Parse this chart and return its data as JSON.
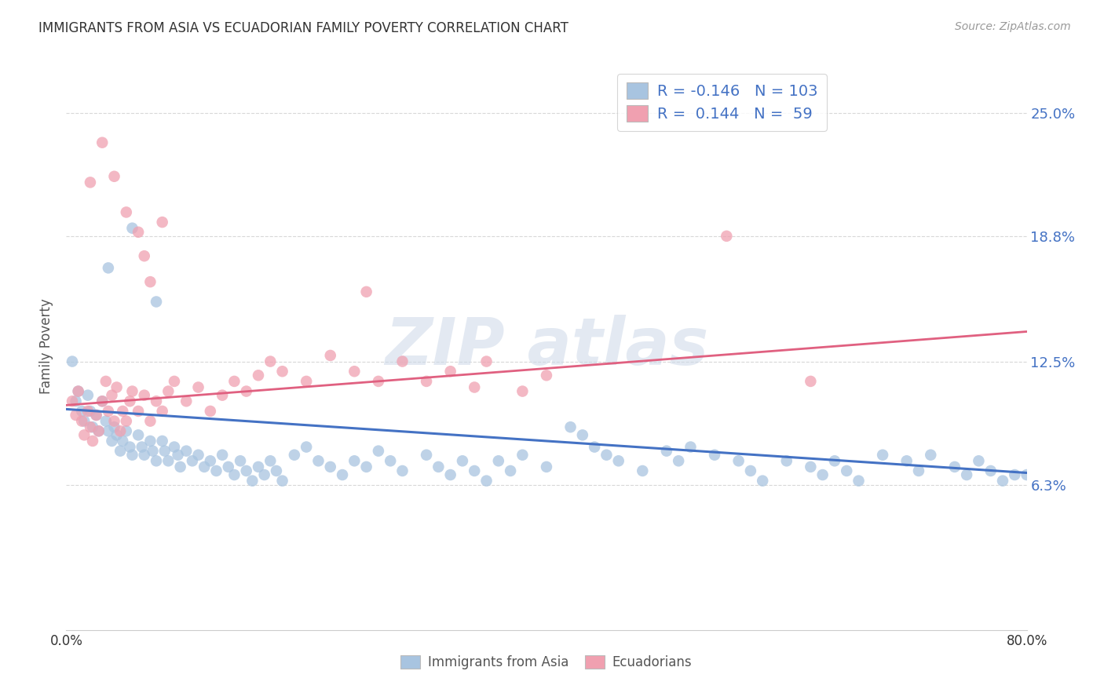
{
  "title": "IMMIGRANTS FROM ASIA VS ECUADORIAN FAMILY POVERTY CORRELATION CHART",
  "source": "Source: ZipAtlas.com",
  "ylabel": "Family Poverty",
  "ytick_labels": [
    "6.3%",
    "12.5%",
    "18.8%",
    "25.0%"
  ],
  "ytick_values": [
    0.063,
    0.125,
    0.188,
    0.25
  ],
  "xlim": [
    0.0,
    0.8
  ],
  "ylim": [
    -0.01,
    0.275
  ],
  "legend_blue_label": "Immigrants from Asia",
  "legend_pink_label": "Ecuadorians",
  "blue_R": -0.146,
  "blue_N": 103,
  "pink_R": 0.144,
  "pink_N": 59,
  "blue_color": "#a8c4e0",
  "pink_color": "#f0a0b0",
  "blue_line_color": "#4472C4",
  "pink_line_color": "#e06080",
  "background_color": "#ffffff",
  "grid_color": "#d8d8d8",
  "blue_line_start_y": 0.101,
  "blue_line_end_y": 0.069,
  "pink_line_start_y": 0.103,
  "pink_line_end_y": 0.14,
  "pink_line_end_x": 0.8,
  "blue_scatter_x": [
    0.005,
    0.008,
    0.01,
    0.013,
    0.015,
    0.018,
    0.02,
    0.022,
    0.025,
    0.027,
    0.03,
    0.033,
    0.035,
    0.038,
    0.04,
    0.042,
    0.045,
    0.047,
    0.05,
    0.053,
    0.055,
    0.06,
    0.063,
    0.065,
    0.07,
    0.072,
    0.075,
    0.08,
    0.082,
    0.085,
    0.09,
    0.093,
    0.095,
    0.1,
    0.105,
    0.11,
    0.115,
    0.12,
    0.125,
    0.13,
    0.135,
    0.14,
    0.145,
    0.15,
    0.155,
    0.16,
    0.165,
    0.17,
    0.175,
    0.18,
    0.19,
    0.2,
    0.21,
    0.22,
    0.23,
    0.24,
    0.25,
    0.26,
    0.27,
    0.28,
    0.3,
    0.31,
    0.32,
    0.33,
    0.34,
    0.35,
    0.36,
    0.37,
    0.38,
    0.4,
    0.42,
    0.43,
    0.44,
    0.45,
    0.46,
    0.48,
    0.5,
    0.51,
    0.52,
    0.54,
    0.56,
    0.57,
    0.58,
    0.6,
    0.62,
    0.63,
    0.64,
    0.65,
    0.66,
    0.68,
    0.7,
    0.71,
    0.72,
    0.74,
    0.75,
    0.76,
    0.77,
    0.78,
    0.79,
    0.8,
    0.035,
    0.055,
    0.075
  ],
  "blue_scatter_y": [
    0.125,
    0.105,
    0.11,
    0.1,
    0.095,
    0.108,
    0.1,
    0.092,
    0.098,
    0.09,
    0.105,
    0.095,
    0.09,
    0.085,
    0.092,
    0.088,
    0.08,
    0.085,
    0.09,
    0.082,
    0.078,
    0.088,
    0.082,
    0.078,
    0.085,
    0.08,
    0.075,
    0.085,
    0.08,
    0.075,
    0.082,
    0.078,
    0.072,
    0.08,
    0.075,
    0.078,
    0.072,
    0.075,
    0.07,
    0.078,
    0.072,
    0.068,
    0.075,
    0.07,
    0.065,
    0.072,
    0.068,
    0.075,
    0.07,
    0.065,
    0.078,
    0.082,
    0.075,
    0.072,
    0.068,
    0.075,
    0.072,
    0.08,
    0.075,
    0.07,
    0.078,
    0.072,
    0.068,
    0.075,
    0.07,
    0.065,
    0.075,
    0.07,
    0.078,
    0.072,
    0.092,
    0.088,
    0.082,
    0.078,
    0.075,
    0.07,
    0.08,
    0.075,
    0.082,
    0.078,
    0.075,
    0.07,
    0.065,
    0.075,
    0.072,
    0.068,
    0.075,
    0.07,
    0.065,
    0.078,
    0.075,
    0.07,
    0.078,
    0.072,
    0.068,
    0.075,
    0.07,
    0.065,
    0.068,
    0.068,
    0.172,
    0.192,
    0.155
  ],
  "pink_scatter_x": [
    0.005,
    0.008,
    0.01,
    0.013,
    0.015,
    0.018,
    0.02,
    0.022,
    0.025,
    0.027,
    0.03,
    0.033,
    0.035,
    0.038,
    0.04,
    0.042,
    0.045,
    0.047,
    0.05,
    0.053,
    0.055,
    0.06,
    0.065,
    0.07,
    0.075,
    0.08,
    0.085,
    0.09,
    0.1,
    0.11,
    0.12,
    0.13,
    0.14,
    0.15,
    0.16,
    0.17,
    0.18,
    0.2,
    0.22,
    0.24,
    0.26,
    0.28,
    0.3,
    0.32,
    0.34,
    0.35,
    0.38,
    0.4,
    0.02,
    0.03,
    0.04,
    0.05,
    0.06,
    0.065,
    0.07,
    0.08,
    0.25,
    0.55,
    0.62
  ],
  "pink_scatter_y": [
    0.105,
    0.098,
    0.11,
    0.095,
    0.088,
    0.1,
    0.092,
    0.085,
    0.098,
    0.09,
    0.105,
    0.115,
    0.1,
    0.108,
    0.095,
    0.112,
    0.09,
    0.1,
    0.095,
    0.105,
    0.11,
    0.1,
    0.108,
    0.095,
    0.105,
    0.1,
    0.11,
    0.115,
    0.105,
    0.112,
    0.1,
    0.108,
    0.115,
    0.11,
    0.118,
    0.125,
    0.12,
    0.115,
    0.128,
    0.12,
    0.115,
    0.125,
    0.115,
    0.12,
    0.112,
    0.125,
    0.11,
    0.118,
    0.215,
    0.235,
    0.218,
    0.2,
    0.19,
    0.178,
    0.165,
    0.195,
    0.16,
    0.188,
    0.115
  ]
}
